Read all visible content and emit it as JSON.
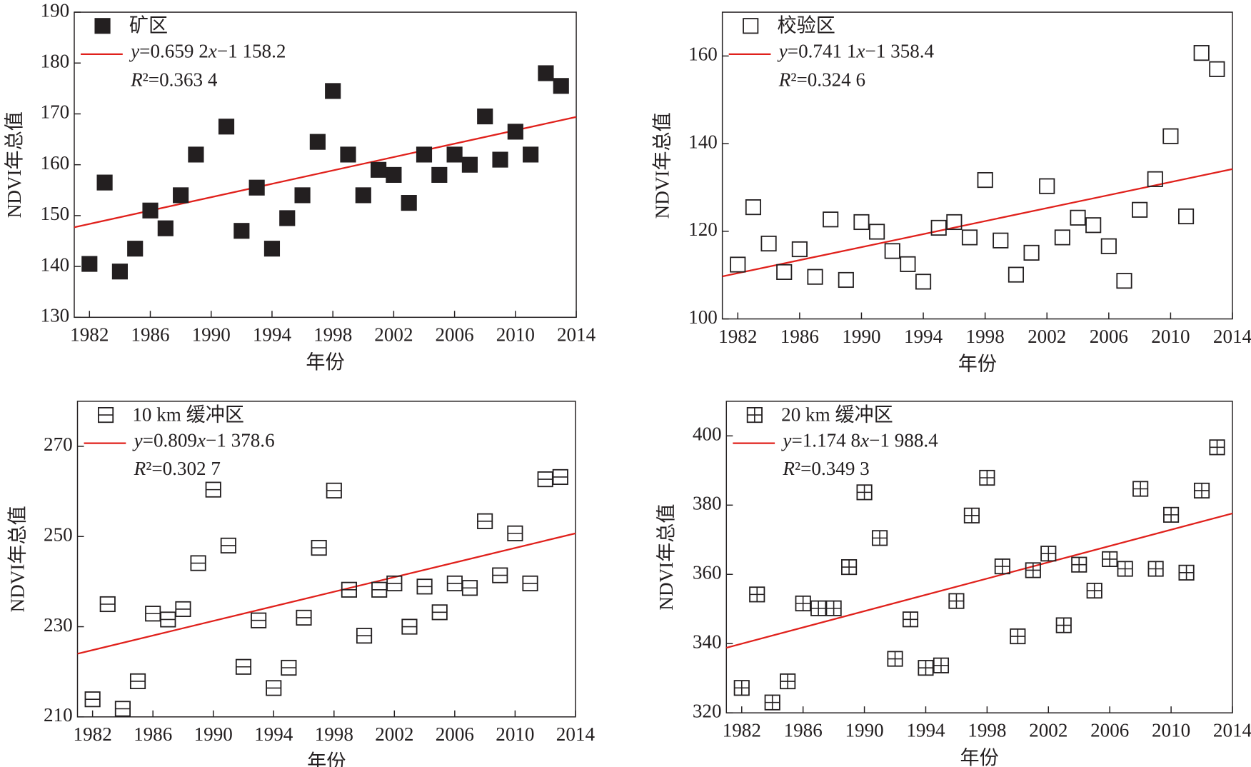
{
  "chart_data": [
    {
      "type": "scatter",
      "x_label": "年份",
      "y_label": "NDVI年总值",
      "xlim": [
        1981,
        2014
      ],
      "xticks": [
        1982,
        1986,
        1990,
        1994,
        1998,
        2002,
        2006,
        2010,
        2014
      ],
      "ylim": [
        130,
        190
      ],
      "yticks": [
        130,
        140,
        150,
        160,
        170,
        180,
        190
      ],
      "series": [
        {
          "name": "矿区",
          "color": "#231f20",
          "marker": "filled-square",
          "x": [
            1982,
            1983,
            1984,
            1985,
            1986,
            1987,
            1988,
            1989,
            1991,
            1992,
            1993,
            1994,
            1995,
            1996,
            1997,
            1998,
            1999,
            2000,
            2001,
            2002,
            2003,
            2004,
            2005,
            2006,
            2007,
            2008,
            2009,
            2010,
            2011,
            2012,
            2013
          ],
          "values": [
            140.5,
            156.5,
            139,
            143.5,
            151,
            147.5,
            154,
            162,
            167.5,
            147,
            155.5,
            143.5,
            149.5,
            154,
            164.5,
            174.5,
            162,
            154,
            159,
            158,
            152.5,
            162,
            158,
            162,
            160,
            169.5,
            161,
            166.5,
            162,
            178,
            175.5
          ]
        }
      ],
      "trend": {
        "color": "#e0201b",
        "x": [
          1981,
          2014
        ],
        "values": [
          147.7,
          169.4
        ]
      },
      "annotations": [
        "y=0.659 2x−1 158.2",
        "R²=0.363 4"
      ]
    },
    {
      "type": "scatter",
      "x_label": "年份",
      "y_label": "NDVI年总值",
      "xlim": [
        1981,
        2014
      ],
      "xticks": [
        1982,
        1986,
        1990,
        1994,
        1998,
        2002,
        2006,
        2010,
        2014
      ],
      "ylim": [
        100,
        170
      ],
      "yticks": [
        100,
        120,
        140,
        160
      ],
      "series": [
        {
          "name": "校验区",
          "color": "#231f20",
          "marker": "open-square",
          "x": [
            1982,
            1983,
            1984,
            1985,
            1986,
            1987,
            1988,
            1989,
            1990,
            1991,
            1992,
            1993,
            1994,
            1995,
            1996,
            1997,
            1998,
            1999,
            2000,
            2001,
            2002,
            2003,
            2004,
            2005,
            2006,
            2007,
            2008,
            2009,
            2010,
            2011,
            2012,
            2013
          ],
          "values": [
            112.4,
            125.5,
            117.2,
            110.7,
            115.9,
            109.6,
            122.7,
            108.9,
            122.1,
            119.9,
            115.5,
            112.5,
            108.5,
            120.8,
            122.1,
            118.6,
            131.7,
            117.9,
            110.1,
            115.1,
            130.3,
            118.6,
            123.1,
            121.4,
            116.6,
            108.7,
            124.9,
            131.9,
            141.7,
            123.4,
            160.7,
            157.0
          ]
        }
      ],
      "trend": {
        "color": "#e0201b",
        "x": [
          1981,
          2014
        ],
        "values": [
          109.7,
          134.2
        ]
      },
      "annotations": [
        "y=0.741 1x−1 358.4",
        "R²=0.324 6"
      ]
    },
    {
      "type": "scatter",
      "x_label": "年份",
      "y_label": "NDVI年总值",
      "xlim": [
        1981,
        2014
      ],
      "xticks": [
        1982,
        1986,
        1990,
        1994,
        1998,
        2002,
        2006,
        2010,
        2014
      ],
      "ylim": [
        210,
        280
      ],
      "yticks": [
        210,
        230,
        250,
        270
      ],
      "series": [
        {
          "name": "10 km 缓冲区",
          "color": "#231f20",
          "marker": "line-square",
          "x": [
            1982,
            1983,
            1984,
            1985,
            1986,
            1987,
            1988,
            1989,
            1990,
            1991,
            1992,
            1993,
            1994,
            1995,
            1996,
            1997,
            1998,
            1999,
            2000,
            2001,
            2002,
            2003,
            2004,
            2005,
            2006,
            2007,
            2008,
            2009,
            2010,
            2011,
            2012,
            2013
          ],
          "values": [
            213.9,
            235.0,
            211.8,
            217.9,
            232.9,
            231.6,
            233.9,
            244.1,
            260.4,
            248.0,
            221.1,
            231.4,
            216.4,
            220.9,
            232.0,
            247.5,
            260.2,
            238.2,
            228.0,
            238.2,
            239.6,
            230.0,
            238.9,
            233.2,
            239.6,
            238.6,
            253.4,
            241.4,
            250.7,
            239.6,
            262.7,
            263.2
          ]
        }
      ],
      "trend": {
        "color": "#e0201b",
        "x": [
          1981,
          2014
        ],
        "values": [
          224.0,
          250.7
        ]
      },
      "annotations": [
        "y=0.809x−1 378.6",
        "R²=0.302 7"
      ]
    },
    {
      "type": "scatter",
      "x_label": "年份",
      "y_label": "NDVI年总值",
      "xlim": [
        1981,
        2014
      ],
      "xticks": [
        1982,
        1986,
        1990,
        1994,
        1998,
        2002,
        2006,
        2010,
        2014
      ],
      "ylim": [
        320,
        410
      ],
      "yticks": [
        320,
        340,
        360,
        380,
        400
      ],
      "series": [
        {
          "name": "20 km 缓冲区",
          "color": "#231f20",
          "marker": "plus-square",
          "x": [
            1982,
            1983,
            1984,
            1985,
            1986,
            1987,
            1988,
            1989,
            1990,
            1991,
            1992,
            1993,
            1994,
            1995,
            1996,
            1997,
            1998,
            1999,
            2000,
            2001,
            2002,
            2003,
            2004,
            2005,
            2006,
            2007,
            2008,
            2009,
            2010,
            2011,
            2012,
            2013
          ],
          "values": [
            327.2,
            354.2,
            323.0,
            329.1,
            351.6,
            350.2,
            350.2,
            362.1,
            383.7,
            370.5,
            335.6,
            347.0,
            333.0,
            333.7,
            352.3,
            377.0,
            387.9,
            362.3,
            342.1,
            361.2,
            366.0,
            345.3,
            362.8,
            355.3,
            364.4,
            361.6,
            384.7,
            361.6,
            377.2,
            360.5,
            384.2,
            396.7
          ]
        }
      ],
      "trend": {
        "color": "#e0201b",
        "x": [
          1981,
          2014
        ],
        "values": [
          338.8,
          377.6
        ]
      },
      "annotations": [
        "y=1.174 8x−1 988.4",
        "R²=0.349 3"
      ]
    }
  ]
}
